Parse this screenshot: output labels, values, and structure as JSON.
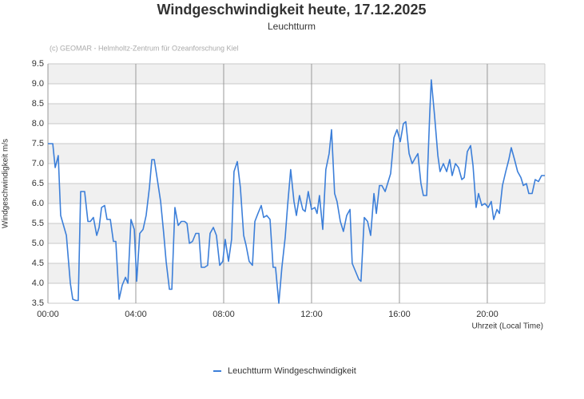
{
  "chart_data": {
    "type": "line",
    "title": "Windgeschwindigkeit heute, 17.12.2025",
    "subtitle": "Leuchtturm",
    "credit": "(c) GEOMAR - Helmholtz-Zentrum für Ozeanforschung Kiel",
    "ylabel": "Windgeschwindigkeit m/s",
    "xlabel": "Uhrzeit (Local Time)",
    "grid": true,
    "legend": "bottom",
    "xlim": [
      0,
      22.62
    ],
    "xticks": [
      {
        "value": 0,
        "label": "00:00"
      },
      {
        "value": 4,
        "label": "04:00"
      },
      {
        "value": 8,
        "label": "08:00"
      },
      {
        "value": 12,
        "label": "12:00"
      },
      {
        "value": 16,
        "label": "16:00"
      },
      {
        "value": 20,
        "label": "20:00"
      }
    ],
    "ylim": [
      3.5,
      9.5
    ],
    "yticks": [
      3.5,
      {
        "value": 4,
        "label": "4.0"
      },
      4.5,
      {
        "value": 5,
        "label": "5.0"
      },
      5.5,
      {
        "value": 6,
        "label": "6.0"
      },
      6.5,
      {
        "value": 7,
        "label": "7.0"
      },
      7.5,
      {
        "value": 8,
        "label": "8.0"
      },
      8.5,
      {
        "value": 9,
        "label": "9.0"
      },
      9.5
    ],
    "x": [
      0,
      0.22,
      0.33,
      0.47,
      0.58,
      0.84,
      1.02,
      1.13,
      1.27,
      1.38,
      1.49,
      1.67,
      1.82,
      1.93,
      2.07,
      2.22,
      2.33,
      2.44,
      2.58,
      2.69,
      2.84,
      2.98,
      3.09,
      3.24,
      3.38,
      3.53,
      3.64,
      3.78,
      3.93,
      4.04,
      4.18,
      4.33,
      4.47,
      4.62,
      4.73,
      4.84,
      4.98,
      5.13,
      5.27,
      5.38,
      5.53,
      5.64,
      5.78,
      5.93,
      6.07,
      6.22,
      6.33,
      6.44,
      6.58,
      6.73,
      6.87,
      6.98,
      7.13,
      7.27,
      7.38,
      7.53,
      7.67,
      7.82,
      7.96,
      8.07,
      8.22,
      8.36,
      8.47,
      8.62,
      8.76,
      8.91,
      9.02,
      9.16,
      9.31,
      9.42,
      9.56,
      9.71,
      9.82,
      9.96,
      10.11,
      10.25,
      10.36,
      10.51,
      10.65,
      10.8,
      10.91,
      11.05,
      11.2,
      11.31,
      11.45,
      11.6,
      11.71,
      11.85,
      12.0,
      12.15,
      12.25,
      12.36,
      12.51,
      12.65,
      12.8,
      12.91,
      13.05,
      13.16,
      13.31,
      13.45,
      13.6,
      13.75,
      13.85,
      14.0,
      14.15,
      14.25,
      14.4,
      14.55,
      14.69,
      14.84,
      14.95,
      15.09,
      15.2,
      15.35,
      15.49,
      15.6,
      15.75,
      15.89,
      16.04,
      16.18,
      16.29,
      16.44,
      16.58,
      16.73,
      16.84,
      16.98,
      17.09,
      17.24,
      17.38,
      17.45,
      17.6,
      17.75,
      17.85,
      18.0,
      18.15,
      18.29,
      18.4,
      18.55,
      18.69,
      18.84,
      18.95,
      19.09,
      19.24,
      19.35,
      19.49,
      19.6,
      19.75,
      19.89,
      20.04,
      20.18,
      20.29,
      20.44,
      20.55,
      20.69,
      20.84,
      20.98,
      21.09,
      21.24,
      21.38,
      21.53,
      21.64,
      21.78,
      21.89,
      22.04,
      22.18,
      22.33,
      22.47,
      22.62
    ],
    "series": [
      {
        "name": "Leuchtturm Windgeschwindigkeit",
        "color": "#3c7fd9",
        "values": [
          7.5,
          7.5,
          6.9,
          7.2,
          5.7,
          5.2,
          4.0,
          3.6,
          3.57,
          3.57,
          6.3,
          6.3,
          5.55,
          5.55,
          5.65,
          5.2,
          5.4,
          5.9,
          5.95,
          5.6,
          5.6,
          5.05,
          5.05,
          3.6,
          3.95,
          4.15,
          4.0,
          5.6,
          5.35,
          4.05,
          5.25,
          5.35,
          5.7,
          6.4,
          7.1,
          7.1,
          6.6,
          6.05,
          5.25,
          4.55,
          3.85,
          3.85,
          5.9,
          5.45,
          5.55,
          5.55,
          5.5,
          5.0,
          5.05,
          5.25,
          5.25,
          4.4,
          4.4,
          4.45,
          5.25,
          5.4,
          5.2,
          4.45,
          4.55,
          5.1,
          4.55,
          5.1,
          6.8,
          7.05,
          6.4,
          5.2,
          4.95,
          4.55,
          4.45,
          5.55,
          5.75,
          5.95,
          5.65,
          5.7,
          5.6,
          4.4,
          4.4,
          3.5,
          4.4,
          5.15,
          5.95,
          6.85,
          6.05,
          5.7,
          6.2,
          5.85,
          5.8,
          6.3,
          5.85,
          5.9,
          5.75,
          6.2,
          5.35,
          6.85,
          7.25,
          7.85,
          6.25,
          6.05,
          5.55,
          5.3,
          5.7,
          5.85,
          4.5,
          4.3,
          4.1,
          4.05,
          5.65,
          5.55,
          5.2,
          6.25,
          5.75,
          6.45,
          6.45,
          6.3,
          6.55,
          6.75,
          7.65,
          7.85,
          7.55,
          8.0,
          8.05,
          7.25,
          7.0,
          7.15,
          7.25,
          6.5,
          6.2,
          6.2,
          8.25,
          9.1,
          8.2,
          7.2,
          6.8,
          7.0,
          6.8,
          7.1,
          6.7,
          7.0,
          6.9,
          6.6,
          6.65,
          7.3,
          7.45,
          6.95,
          5.9,
          6.25,
          5.95,
          6.0,
          5.9,
          6.05,
          5.6,
          5.85,
          5.75,
          6.45,
          6.8,
          7.1,
          7.4,
          7.1,
          6.8,
          6.65,
          6.45,
          6.5,
          6.25,
          6.25,
          6.6,
          6.55,
          6.7,
          6.7
        ]
      }
    ]
  }
}
